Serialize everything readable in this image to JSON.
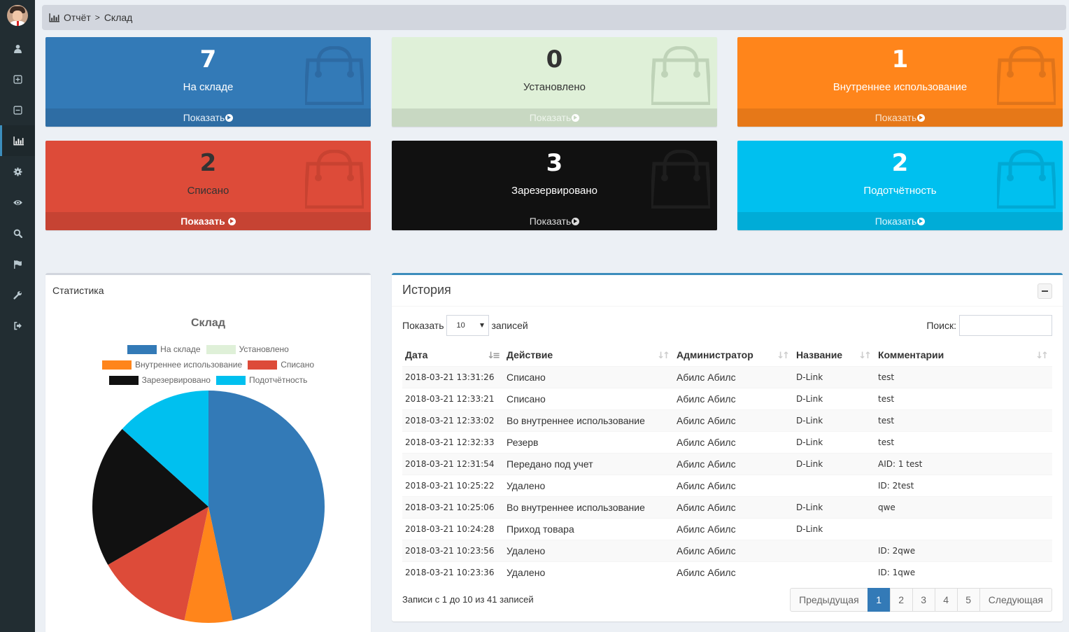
{
  "sidebar": {
    "items": [
      {
        "icon": "user-icon",
        "active": false
      },
      {
        "icon": "plus-square-icon",
        "active": false
      },
      {
        "icon": "minus-square-icon",
        "active": false
      },
      {
        "icon": "bar-chart-icon",
        "active": true
      },
      {
        "icon": "gear-icon",
        "active": false
      },
      {
        "icon": "eye-icon",
        "active": false
      },
      {
        "icon": "search-icon",
        "active": false
      },
      {
        "icon": "flag-icon",
        "active": false
      },
      {
        "icon": "wrench-icon",
        "active": false
      },
      {
        "icon": "sign-out-icon",
        "active": false
      }
    ]
  },
  "breadcrumb": {
    "icon": "bar-chart-icon",
    "parent": "Отчёт",
    "separator": ">",
    "current": "Склад"
  },
  "cards": [
    {
      "value": "7",
      "label": "На складе",
      "link": "Показать",
      "color": "#337ab7"
    },
    {
      "value": "0",
      "label": "Установлено",
      "link": "Показать",
      "color": "#dff0d8"
    },
    {
      "value": "1",
      "label": "Внутреннее использование",
      "link": "Показать",
      "color": "#ff851b"
    },
    {
      "value": "2",
      "label": "Списано",
      "link": "Показать",
      "color": "#dd4b39"
    },
    {
      "value": "3",
      "label": "Зарезервировано",
      "link": "Показать",
      "color": "#111111"
    },
    {
      "value": "2",
      "label": "Подотчётность",
      "link": "Показать",
      "color": "#00c0ef"
    }
  ],
  "stats": {
    "title": "Статистика"
  },
  "chart_data": {
    "type": "pie",
    "title": "Склад",
    "legend_position": "top",
    "categories": [
      "На складе",
      "Установлено",
      "Внутреннее использование",
      "Списано",
      "Зарезервировано",
      "Подотчётность"
    ],
    "values": [
      7,
      0,
      1,
      2,
      3,
      2
    ],
    "colors": [
      "#337ab7",
      "#dff0d8",
      "#ff851b",
      "#dd4b39",
      "#111111",
      "#00c0ef"
    ]
  },
  "history": {
    "title": "История",
    "length_label_before": "Показать",
    "length_value": "10",
    "length_label_after": "записей",
    "search_label": "Поиск:",
    "search_value": "",
    "columns": [
      "Дата",
      "Действие",
      "Администратор",
      "Название",
      "Комментарии"
    ],
    "rows": [
      [
        "2018-03-21 13:31:26",
        "Списано",
        "Абилс Абилс",
        "D-Link",
        "test"
      ],
      [
        "2018-03-21 12:33:21",
        "Списано",
        "Абилс Абилс",
        "D-Link",
        "test"
      ],
      [
        "2018-03-21 12:33:02",
        "Во внутреннее использование",
        "Абилс Абилс",
        "D-Link",
        "test"
      ],
      [
        "2018-03-21 12:32:33",
        "Резерв",
        "Абилс Абилс",
        "D-Link",
        "test"
      ],
      [
        "2018-03-21 12:31:54",
        "Передано под учет",
        "Абилс Абилс",
        "D-Link",
        "AID: 1 test"
      ],
      [
        "2018-03-21 10:25:22",
        "Удалено",
        "Абилс Абилс",
        "",
        "ID: 2test"
      ],
      [
        "2018-03-21 10:25:06",
        "Во внутреннее использование",
        "Абилс Абилс",
        "D-Link",
        "qwe"
      ],
      [
        "2018-03-21 10:24:28",
        "Приход товара",
        "Абилс Абилс",
        "D-Link",
        ""
      ],
      [
        "2018-03-21 10:23:56",
        "Удалено",
        "Абилс Абилс",
        "",
        "ID: 2qwe"
      ],
      [
        "2018-03-21 10:23:36",
        "Удалено",
        "Абилс Абилс",
        "",
        "ID: 1qwe"
      ]
    ],
    "info": "Записи с 1 до 10 из 41 записей",
    "pagination": {
      "prev": "Предыдущая",
      "pages": [
        "1",
        "2",
        "3",
        "4",
        "5"
      ],
      "active_page": "1",
      "next": "Следующая"
    }
  }
}
